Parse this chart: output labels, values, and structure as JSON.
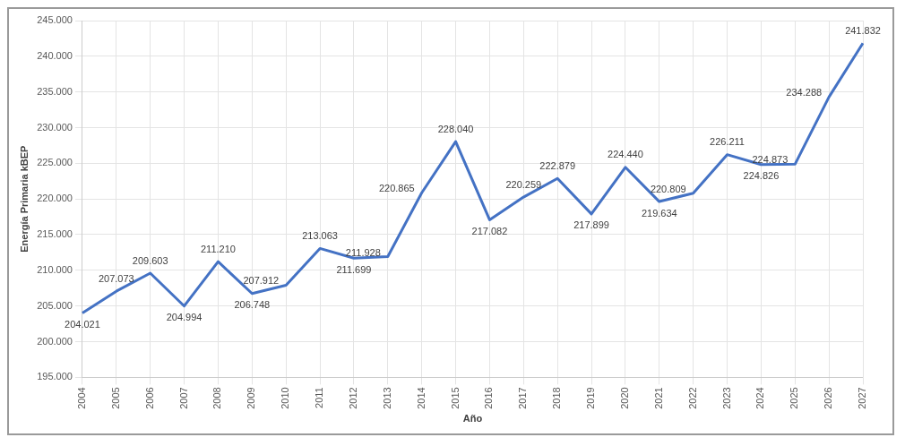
{
  "chart_data": {
    "type": "line",
    "ylabel": "Energía Primaria kBEP",
    "xlabel": "Año",
    "categories": [
      "2004",
      "2005",
      "2006",
      "2007",
      "2008",
      "2009",
      "2010",
      "2011",
      "2012",
      "2013",
      "2014",
      "2015",
      "2016",
      "2017",
      "2018",
      "2019",
      "2020",
      "2021",
      "2022",
      "2023",
      "2024",
      "2025",
      "2026",
      "2027"
    ],
    "series": [
      {
        "color": "#4472c4",
        "values": [
          204021,
          207073,
          209603,
          204994,
          211210,
          206748,
          207912,
          213063,
          211699,
          211928,
          220865,
          228040,
          217082,
          220259,
          222879,
          217899,
          224440,
          219634,
          220809,
          226211,
          224826,
          224873,
          234288,
          241832
        ],
        "value_labels": [
          "204.021",
          "207.073",
          "209.603",
          "204.994",
          "211.210",
          "206.748",
          "207.912",
          "213.063",
          "211.699",
          "211.928",
          "220.865",
          "228.040",
          "217.082",
          "220.259",
          "222.879",
          "217.899",
          "224.440",
          "219.634",
          "220.809",
          "226.211",
          "224.826",
          "224.873",
          "234.288",
          "241.832"
        ]
      }
    ],
    "ylim": [
      195000,
      245000
    ],
    "yticks": [
      {
        "value": 195000,
        "label": "195.000"
      },
      {
        "value": 200000,
        "label": "200.000"
      },
      {
        "value": 205000,
        "label": "205.000"
      },
      {
        "value": 210000,
        "label": "210.000"
      },
      {
        "value": 215000,
        "label": "215.000"
      },
      {
        "value": 220000,
        "label": "220.000"
      },
      {
        "value": 225000,
        "label": "225.000"
      },
      {
        "value": 230000,
        "label": "230.000"
      },
      {
        "value": 235000,
        "label": "235.000"
      },
      {
        "value": 240000,
        "label": "240.000"
      },
      {
        "value": 245000,
        "label": "245.000"
      }
    ],
    "grid": true,
    "marker": "none",
    "line_style": "solid",
    "legend": false
  }
}
